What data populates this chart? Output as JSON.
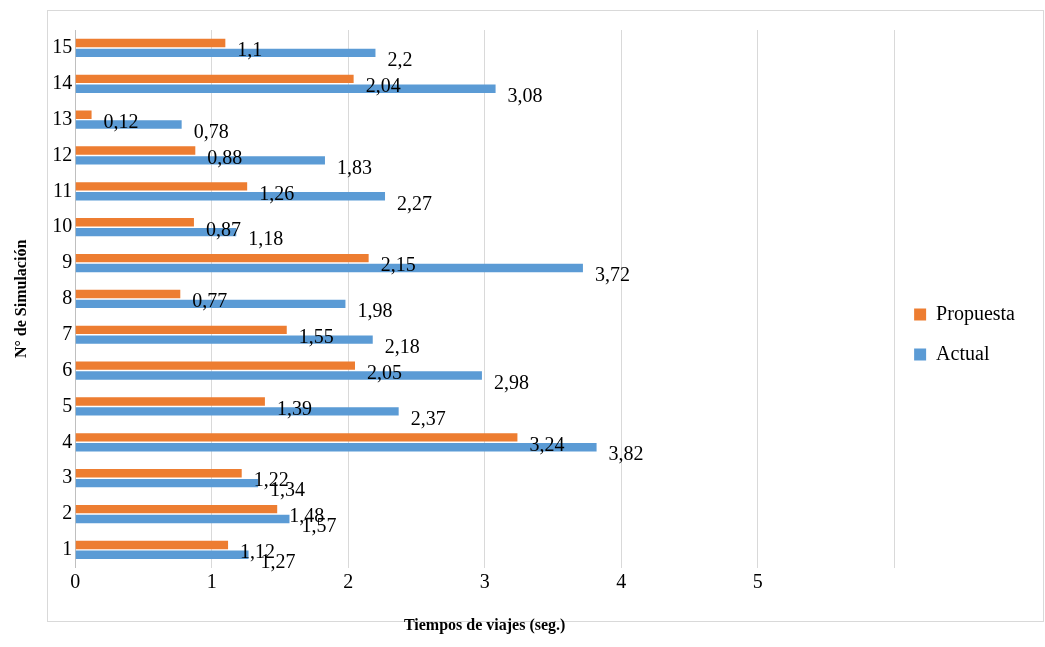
{
  "chart_data": {
    "type": "bar",
    "orientation": "horizontal",
    "xlabel": "Tiempos de viajes (seg.)",
    "ylabel": "N° de Simulación",
    "categories": [
      "15",
      "14",
      "13",
      "12",
      "11",
      "10",
      "9",
      "8",
      "7",
      "6",
      "5",
      "4",
      "3",
      "2",
      "1"
    ],
    "series": [
      {
        "name": "Propuesta",
        "color": "#ed7d31",
        "values": [
          1.1,
          2.04,
          0.12,
          0.88,
          1.26,
          0.87,
          2.15,
          0.77,
          1.55,
          2.05,
          1.39,
          3.24,
          1.22,
          1.48,
          1.12
        ],
        "value_labels": [
          "1,1",
          "2,04",
          "0,12",
          "0,88",
          "1,26",
          "0,87",
          "2,15",
          "0,77",
          "1,55",
          "2,05",
          "1,39",
          "3,24",
          "1,22",
          "1,48",
          "1,12"
        ]
      },
      {
        "name": "Actual",
        "color": "#5b9bd5",
        "values": [
          2.2,
          3.08,
          0.78,
          1.83,
          2.27,
          1.18,
          3.72,
          1.98,
          2.18,
          2.98,
          2.37,
          3.82,
          1.34,
          1.57,
          1.27
        ],
        "value_labels": [
          "2,2",
          "3,08",
          "0,78",
          "1,83",
          "2,27",
          "1,18",
          "3,72",
          "1,98",
          "2,18",
          "2,98",
          "2,37",
          "3,82",
          "1,34",
          "1,57",
          "1,27"
        ]
      }
    ],
    "xlim": [
      0,
      6
    ],
    "xticks": [
      0,
      1,
      2,
      3,
      4,
      5,
      {
        "value": 6,
        "label": null
      }
    ],
    "grid": "x",
    "legend": "right"
  }
}
